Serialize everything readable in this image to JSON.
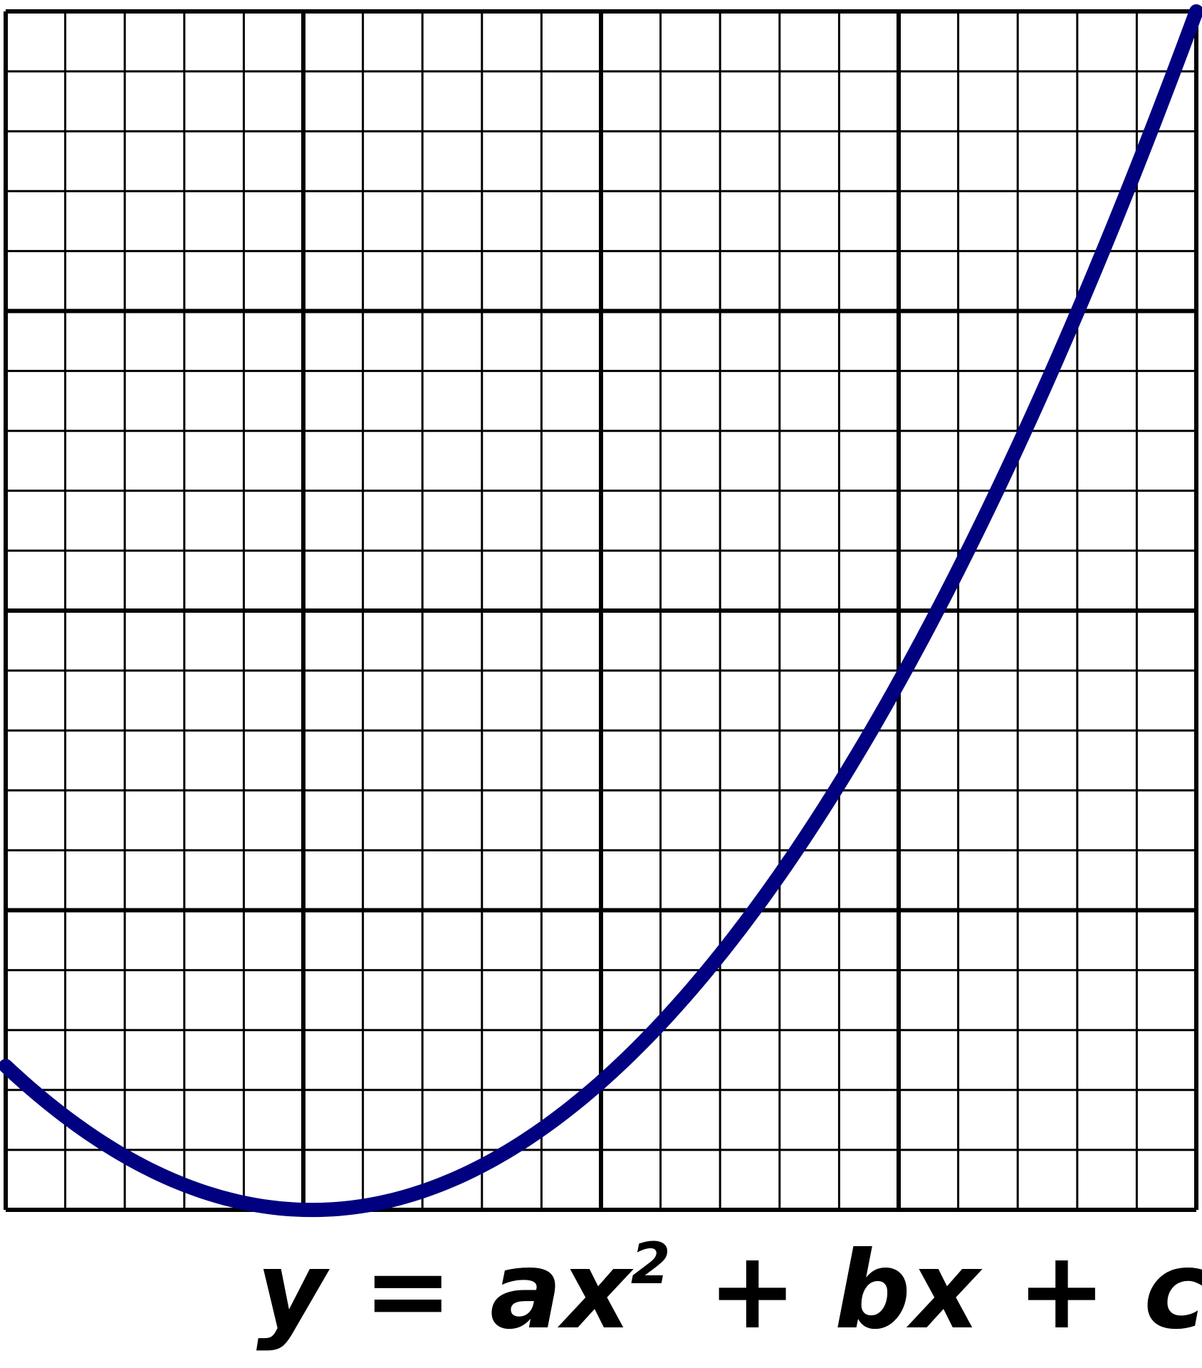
{
  "chart_data": {
    "type": "line",
    "title": "",
    "xlabel": "",
    "ylabel": "",
    "xlim": [
      0,
      20
    ],
    "ylim": [
      0,
      20
    ],
    "grid": true,
    "grid_minor_step": 1,
    "grid_major_step": 5,
    "series": [
      {
        "x": [
          0,
          5,
          20
        ],
        "y": [
          2.4,
          0,
          20
        ],
        "curve": "quadratic",
        "color": "#000080"
      }
    ]
  },
  "caption": {
    "y": "y",
    "eq": " = ",
    "ax": "ax",
    "exp": "2",
    "plus_bx": " + bx",
    "plus_c": " + c"
  },
  "colors": {
    "curve": "#000080",
    "grid": "#000000"
  }
}
